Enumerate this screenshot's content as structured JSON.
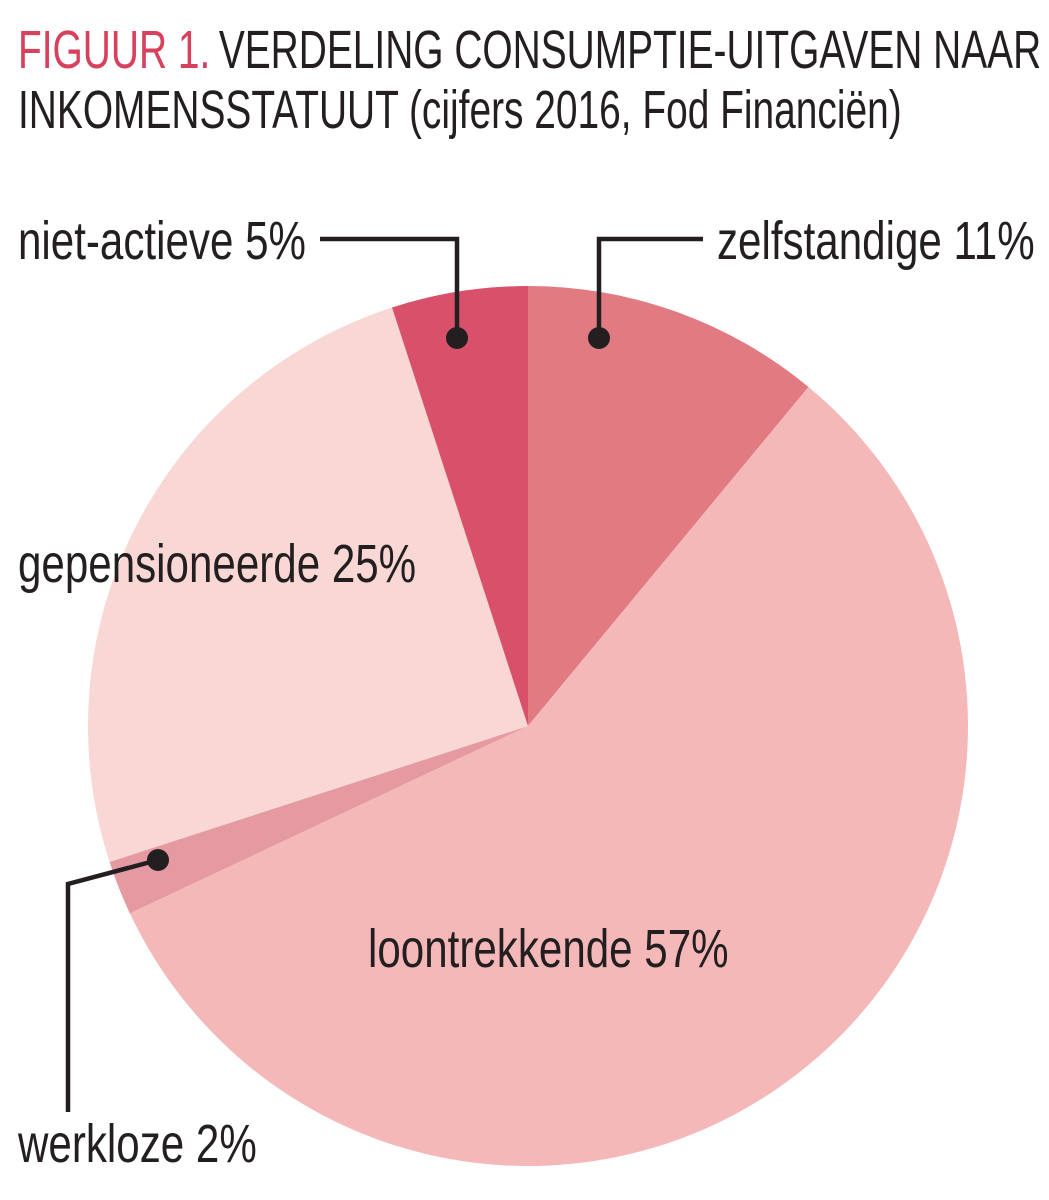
{
  "figure": {
    "title_prefix": "FIGUUR 1.",
    "title_line1": "VERDELING CONSUMPTIE-UITGAVEN NAAR",
    "title_line2": "INKOMENSSTATUUT (cijfers 2016, Fod Financiën)",
    "title_prefix_color": "#d8415e",
    "text_color": "#231f20"
  },
  "chart_data": {
    "type": "pie",
    "title": "FIGUUR 1. VERDELING CONSUMPTIE-UITGAVEN NAAR INKOMENSSTATUUT (cijfers 2016, Fod Financiën)",
    "unit": "%",
    "direction": "clockwise",
    "start_angle_deg_from_north": 0,
    "categories": [
      "zelfstandige",
      "loontrekkende",
      "werkloze",
      "gepensioneerde",
      "niet-actieve"
    ],
    "values": [
      11,
      57,
      2,
      25,
      5
    ],
    "colors": [
      "#e27a82",
      "#f4b8b9",
      "#e49aa0",
      "#f8d7d5",
      "#d8506a"
    ],
    "labels": [
      "zelfstandige 11%",
      "loontrekkende 57%",
      "werkloze 2%",
      "gepensioneerde 25%",
      "niet-actieve 5%"
    ],
    "legend": "none",
    "leader_line_color": "#231f20"
  }
}
